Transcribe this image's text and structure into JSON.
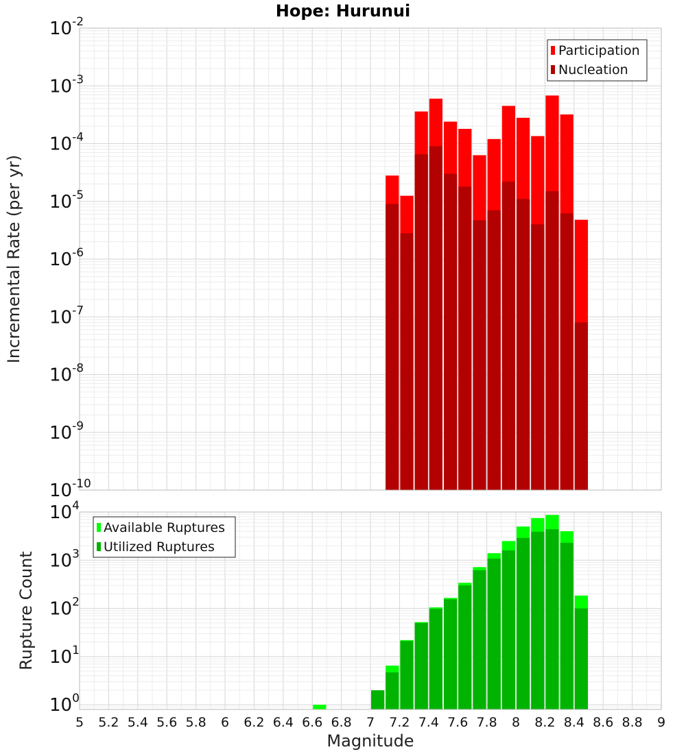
{
  "colors": {
    "participation": "#ff0000",
    "nucleation": "#b30000",
    "available": "#00ff00",
    "utilized": "#00b300"
  },
  "chart_data": [
    {
      "type": "bar",
      "title": "Hope: Hurunui",
      "xlabel": "",
      "ylabel": "Incremental Rate (per yr)",
      "yscale": "log",
      "ylim": [
        1e-10,
        0.01
      ],
      "xlim": [
        5,
        9
      ],
      "x": [
        7.15,
        7.25,
        7.35,
        7.45,
        7.55,
        7.65,
        7.75,
        7.85,
        7.95,
        8.05,
        8.15,
        8.25,
        8.35,
        8.45
      ],
      "legend_position": "top-right",
      "ytick_bases": [
        "10",
        "10",
        "10",
        "10",
        "10",
        "10",
        "10",
        "10",
        "10"
      ],
      "ytick_exponents": [
        "-10",
        "-9",
        "-8",
        "-7",
        "-6",
        "-5",
        "-4",
        "-3",
        "-2"
      ],
      "series": [
        {
          "name": "Participation",
          "values": [
            2.8e-05,
            1.25e-05,
            0.00036,
            0.0006,
            0.00024,
            0.00018,
            6.3e-05,
            0.00012,
            0.00045,
            0.00028,
            0.000135,
            0.00068,
            0.00032,
            4.8e-06
          ]
        },
        {
          "name": "Nucleation",
          "values": [
            9e-06,
            2.8e-06,
            6.5e-05,
            9e-05,
            3e-05,
            1.8e-05,
            4.7e-06,
            7e-06,
            2.2e-05,
            1.1e-05,
            4e-06,
            1.5e-05,
            6.2e-06,
            8e-08
          ]
        }
      ]
    },
    {
      "type": "bar",
      "title": "",
      "xlabel": "Magnitude",
      "ylabel": "Rupture Count",
      "yscale": "log",
      "ylim": [
        0.8,
        10000
      ],
      "xlim": [
        5,
        9
      ],
      "x": [
        6.65,
        7.05,
        7.15,
        7.25,
        7.35,
        7.45,
        7.55,
        7.65,
        7.75,
        7.85,
        7.95,
        8.05,
        8.15,
        8.25,
        8.35,
        8.45
      ],
      "legend_position": "top-left",
      "xtick_labels": [
        "5",
        "5.2",
        "5.4",
        "5.6",
        "5.8",
        "6",
        "6.2",
        "6.4",
        "6.6",
        "6.8",
        "7",
        "7.2",
        "7.4",
        "7.6",
        "7.8",
        "8",
        "8.2",
        "8.4",
        "8.6",
        "8.8",
        "9"
      ],
      "ytick_bases": [
        "10",
        "10",
        "10",
        "10",
        "10"
      ],
      "ytick_exponents": [
        "0",
        "1",
        "2",
        "3",
        "4"
      ],
      "series": [
        {
          "name": "Available Ruptures",
          "values": [
            1,
            2,
            6.5,
            22,
            52,
            105,
            165,
            340,
            720,
            1400,
            2500,
            5000,
            7500,
            8700,
            4000,
            185
          ]
        },
        {
          "name": "Utilized Ruptures",
          "values": [
            0,
            2,
            4.7,
            21,
            50,
            98,
            155,
            300,
            620,
            1080,
            1600,
            2900,
            3900,
            4400,
            2300,
            100
          ]
        }
      ]
    }
  ]
}
